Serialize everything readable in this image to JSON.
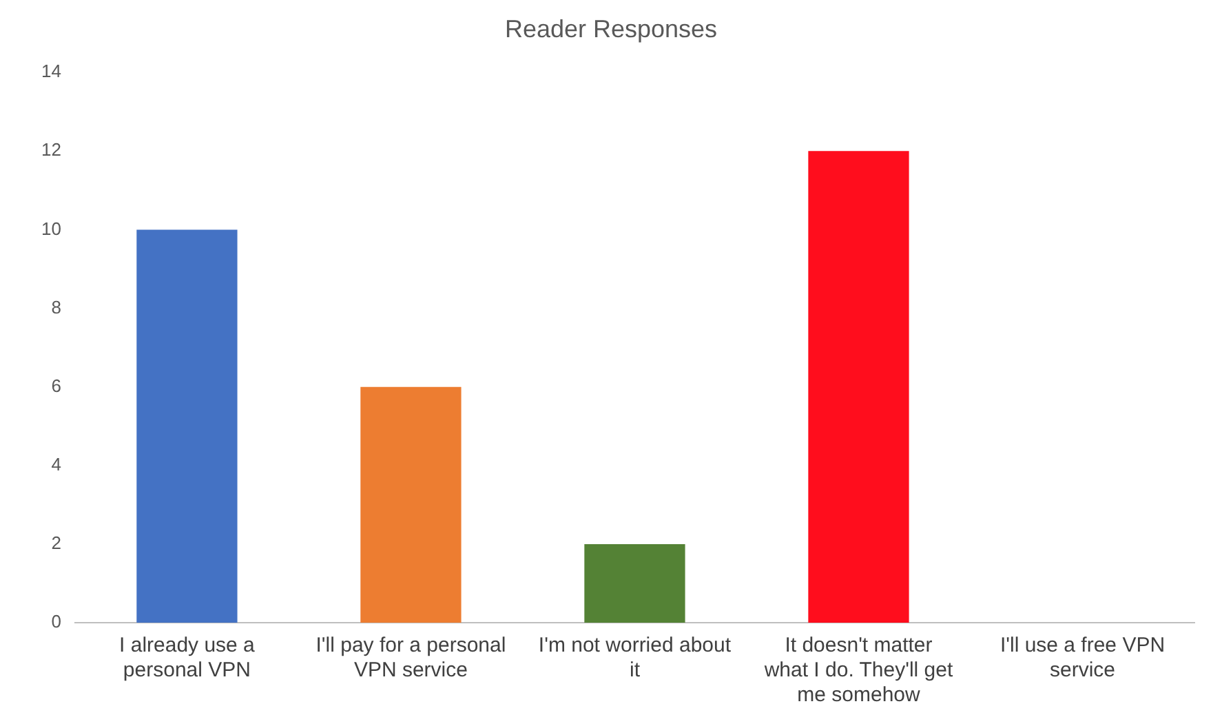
{
  "chart_data": {
    "type": "bar",
    "title": "Reader Responses",
    "categories": [
      "I already use a personal VPN",
      "I'll pay for a personal VPN service",
      "I'm not worried about it",
      "It doesn't matter what I do. They'll get me somehow",
      "I'll use a free VPN service"
    ],
    "values": [
      10,
      6,
      2,
      12,
      0
    ],
    "colors": [
      "#4472c4",
      "#ed7d31",
      "#548235",
      "#ff0d1d",
      "#a5a5a5"
    ],
    "ylim": [
      0,
      14
    ],
    "yticks": [
      0,
      2,
      4,
      6,
      8,
      10,
      12,
      14
    ],
    "grid": false,
    "legend": false
  }
}
